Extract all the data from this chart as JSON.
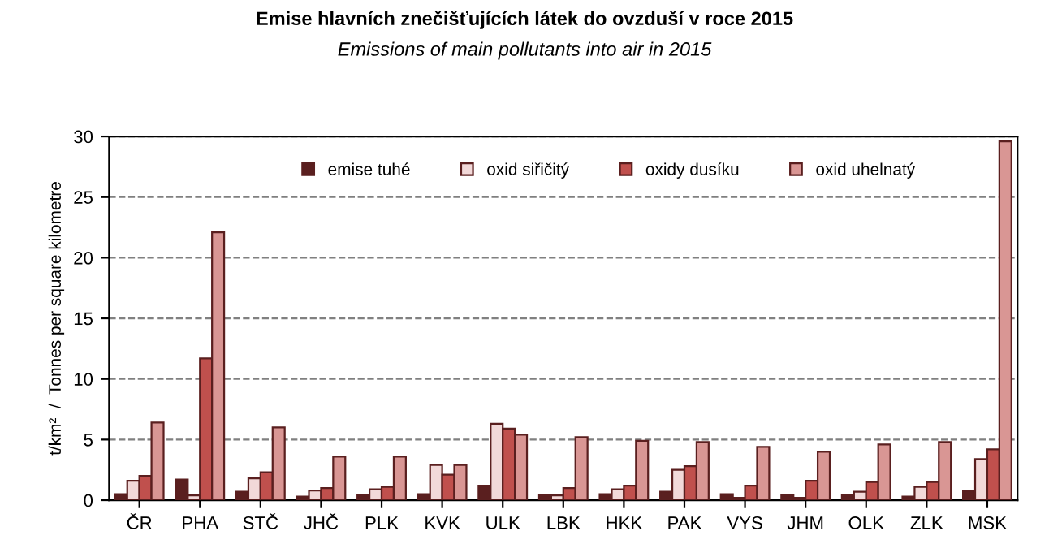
{
  "chart_data": {
    "type": "bar",
    "title": "Emise hlavních znečišťujících látek do ovzduší v roce 2015",
    "subtitle": "Emissions of main pollutants into air in 2015",
    "ylabel": "t/km²  /  Tonnes per square kilometre",
    "categories": [
      "ČR",
      "PHA",
      "STČ",
      "JHČ",
      "PLK",
      "KVK",
      "ULK",
      "LBK",
      "HKK",
      "PAK",
      "VYS",
      "JHM",
      "OLK",
      "ZLK",
      "MSK"
    ],
    "series": [
      {
        "name": "emise tuhé",
        "color": "#5a1f1f",
        "values": [
          0.5,
          1.7,
          0.7,
          0.3,
          0.4,
          0.5,
          1.2,
          0.4,
          0.5,
          0.7,
          0.5,
          0.4,
          0.4,
          0.3,
          0.8
        ]
      },
      {
        "name": "oxid siřičitý",
        "color": "#f2d9d9",
        "values": [
          1.6,
          0.4,
          1.8,
          0.8,
          0.9,
          2.9,
          6.3,
          0.4,
          0.9,
          2.5,
          0.2,
          0.2,
          0.7,
          1.1,
          3.4
        ]
      },
      {
        "name": "oxidy dusíku",
        "color": "#c0504d",
        "values": [
          2.0,
          11.7,
          2.3,
          1.0,
          1.1,
          2.1,
          5.9,
          1.0,
          1.2,
          2.8,
          1.2,
          1.6,
          1.5,
          1.5,
          4.2
        ]
      },
      {
        "name": "oxid uhelnatý",
        "color": "#d99694",
        "values": [
          6.4,
          22.1,
          6.0,
          3.6,
          3.6,
          2.9,
          5.4,
          5.2,
          4.9,
          4.8,
          4.4,
          4.0,
          4.6,
          4.8,
          29.6
        ]
      }
    ],
    "ylim": [
      0,
      30
    ],
    "yticks": [
      0,
      5,
      10,
      15,
      20,
      25,
      30
    ],
    "grid": "y",
    "legend": "top"
  }
}
